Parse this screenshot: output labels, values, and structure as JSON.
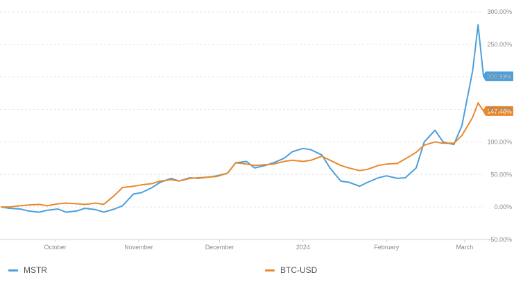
{
  "chart_data": {
    "type": "line",
    "title": "",
    "xlabel": "",
    "ylabel": "",
    "x_tick_labels": [
      "October",
      "November",
      "December",
      "2024",
      "February",
      "March"
    ],
    "y_tick_labels": [
      "300.00%",
      "250.00%",
      "200.00%",
      "150.00%",
      "100.00%",
      "50.00%",
      "0.00%",
      "-50.00%"
    ],
    "y_ticks": [
      300,
      250,
      200,
      150,
      100,
      50,
      0,
      -50
    ],
    "ylim": [
      -50,
      300
    ],
    "grid": true,
    "legend_position": "bottom",
    "x": [
      "2023-09-11",
      "2023-09-14",
      "2023-09-18",
      "2023-09-21",
      "2023-09-25",
      "2023-09-28",
      "2023-10-02",
      "2023-10-05",
      "2023-10-09",
      "2023-10-12",
      "2023-10-16",
      "2023-10-19",
      "2023-10-23",
      "2023-10-26",
      "2023-10-30",
      "2023-11-02",
      "2023-11-06",
      "2023-11-09",
      "2023-11-13",
      "2023-11-16",
      "2023-11-20",
      "2023-11-23",
      "2023-11-27",
      "2023-11-30",
      "2023-12-04",
      "2023-12-07",
      "2023-12-11",
      "2023-12-14",
      "2023-12-18",
      "2023-12-21",
      "2023-12-25",
      "2023-12-28",
      "2024-01-01",
      "2024-01-04",
      "2024-01-08",
      "2024-01-11",
      "2024-01-15",
      "2024-01-18",
      "2024-01-22",
      "2024-01-25",
      "2024-01-29",
      "2024-02-01",
      "2024-02-05",
      "2024-02-08",
      "2024-02-12",
      "2024-02-15",
      "2024-02-19",
      "2024-02-22",
      "2024-02-26",
      "2024-02-29",
      "2024-03-04",
      "2024-03-06",
      "2024-03-08"
    ],
    "series": [
      {
        "name": "MSTR",
        "color": "#4a9fdc",
        "end_label": "200.93%",
        "values": [
          0,
          -2,
          -3,
          -6,
          -8,
          -5,
          -3,
          -8,
          -6,
          -2,
          -4,
          -8,
          -3,
          2,
          20,
          22,
          30,
          38,
          44,
          40,
          45,
          44,
          46,
          48,
          52,
          68,
          70,
          60,
          64,
          68,
          75,
          85,
          90,
          88,
          80,
          60,
          40,
          38,
          32,
          38,
          45,
          48,
          44,
          45,
          60,
          100,
          118,
          100,
          96,
          125,
          210,
          280,
          200.93
        ]
      },
      {
        "name": "BTC-USD",
        "color": "#e8892b",
        "end_label": "147.48%",
        "values": [
          0,
          0,
          2,
          3,
          4,
          2,
          5,
          6,
          5,
          4,
          6,
          4,
          18,
          30,
          32,
          34,
          36,
          40,
          42,
          40,
          44,
          45,
          46,
          47,
          52,
          68,
          66,
          64,
          65,
          66,
          70,
          72,
          70,
          72,
          78,
          72,
          64,
          60,
          56,
          58,
          64,
          66,
          67,
          74,
          84,
          95,
          100,
          98,
          98,
          110,
          138,
          160,
          147.48
        ]
      }
    ]
  }
}
